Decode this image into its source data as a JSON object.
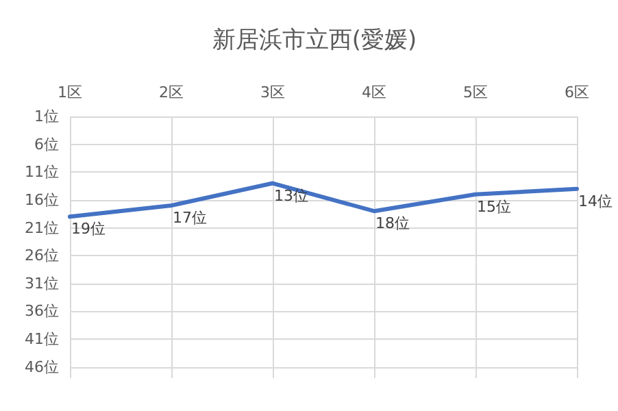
{
  "chart_data": {
    "type": "line",
    "title": "新居浜市立西(愛媛)",
    "categories": [
      "1区",
      "2区",
      "3区",
      "4区",
      "5区",
      "6区"
    ],
    "series": [
      {
        "color": "#4472c4",
        "values": [
          19,
          17,
          13,
          18,
          15,
          14
        ],
        "value_labels": [
          "19位",
          "17位",
          "13位",
          "18位",
          "15位",
          "14位"
        ]
      }
    ],
    "ylim": [
      48,
      1
    ],
    "yticks": [
      {
        "value": 1,
        "label": "1位"
      },
      {
        "value": 6,
        "label": "6位"
      },
      {
        "value": 11,
        "label": "11位"
      },
      {
        "value": 16,
        "label": "16位"
      },
      {
        "value": 21,
        "label": "21位"
      },
      {
        "value": 26,
        "label": "26位"
      },
      {
        "value": 31,
        "label": "31位"
      },
      {
        "value": 36,
        "label": "36位"
      },
      {
        "value": 41,
        "label": "41位"
      },
      {
        "value": 46,
        "label": "46位"
      }
    ],
    "grid": true,
    "marker": "none",
    "line_style": "solid"
  }
}
